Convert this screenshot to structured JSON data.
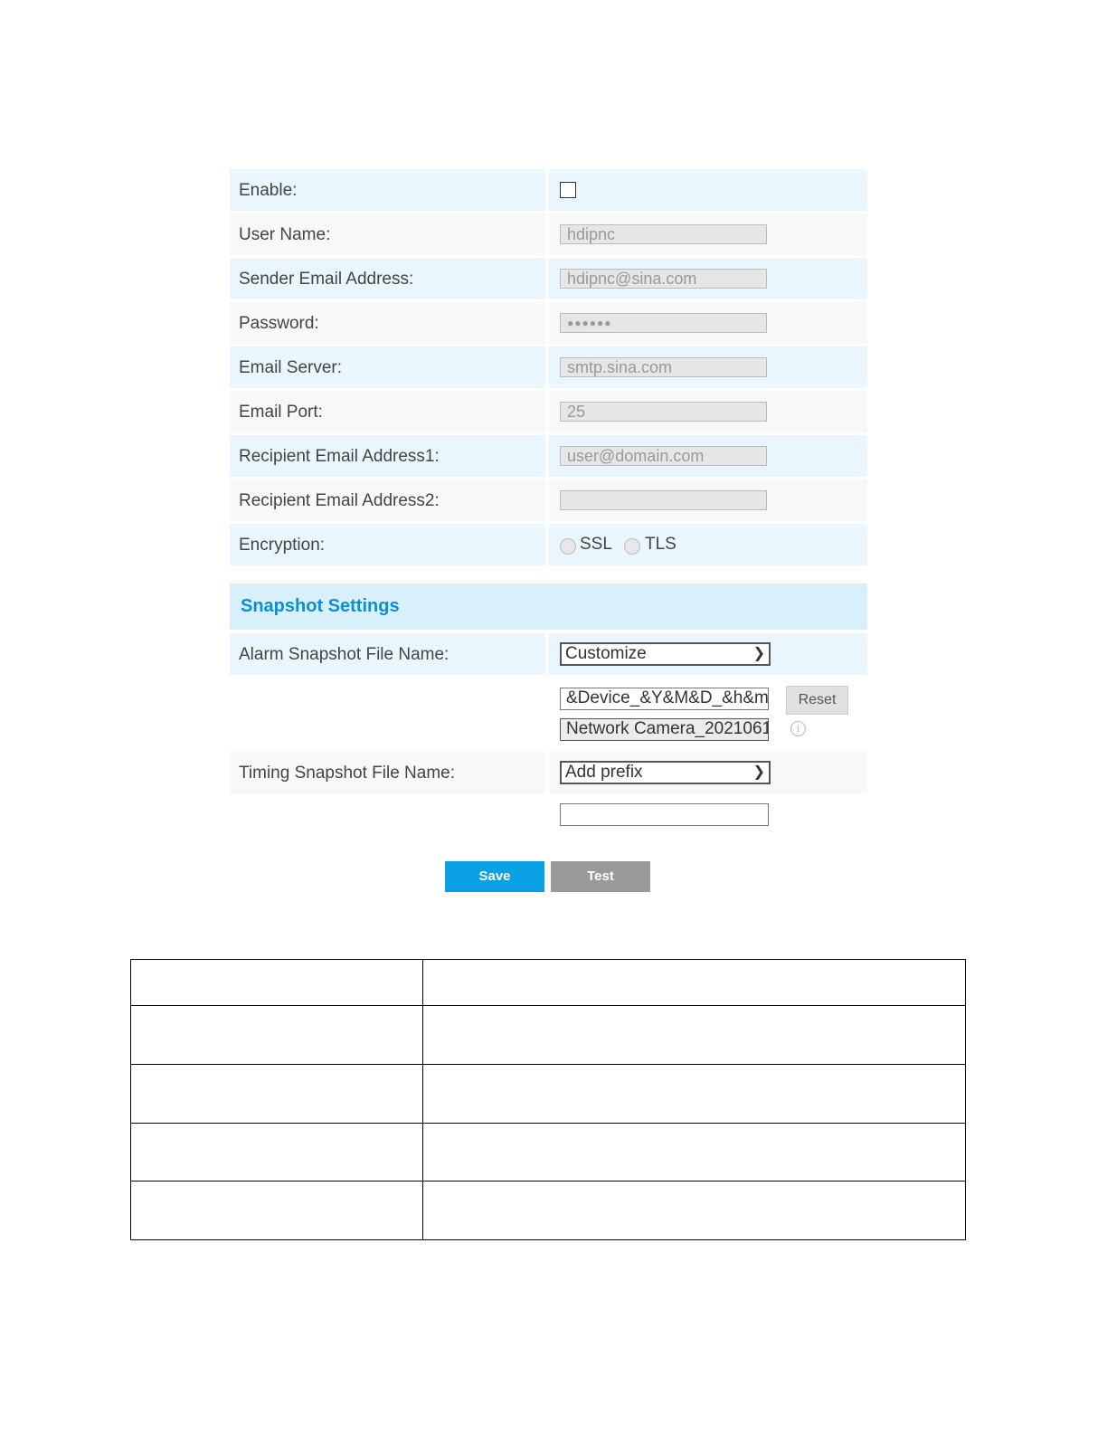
{
  "form": {
    "enable_label": "Enable:",
    "enable_checked": false,
    "fields": [
      {
        "label": "User Name:",
        "value": "hdipnc"
      },
      {
        "label": "Sender Email Address:",
        "value": "hdipnc@sina.com"
      },
      {
        "label": "Password:",
        "value": "●●●●●●"
      },
      {
        "label": "Email Server:",
        "value": "smtp.sina.com"
      },
      {
        "label": "Email Port:",
        "value": "25"
      },
      {
        "label": "Recipient Email Address1:",
        "value": "user@domain.com"
      },
      {
        "label": "Recipient Email Address2:",
        "value": ""
      }
    ],
    "encryption_label": "Encryption:",
    "ssl_label": "SSL",
    "tls_label": "TLS"
  },
  "snapshot": {
    "title": "Snapshot Settings",
    "alarm_label": "Alarm Snapshot File Name:",
    "alarm_select": "Customize",
    "alarm_pattern": "&Device_&Y&M&D_&h&m",
    "alarm_preview": "Network Camera_2021061",
    "reset_label": "Reset",
    "timing_label": "Timing Snapshot File Name:",
    "timing_select": "Add prefix",
    "timing_prefix": ""
  },
  "buttons": {
    "save": "Save",
    "test": "Test"
  },
  "colors": {
    "accent": "#0aa1e4",
    "header_bg": "#d7f0fc",
    "title": "#0a8fd6",
    "test_bg": "#999999"
  },
  "table": {
    "rows": [
      [
        "",
        ""
      ],
      [
        "",
        ""
      ],
      [
        "",
        ""
      ],
      [
        "",
        ""
      ],
      [
        "",
        ""
      ]
    ]
  }
}
